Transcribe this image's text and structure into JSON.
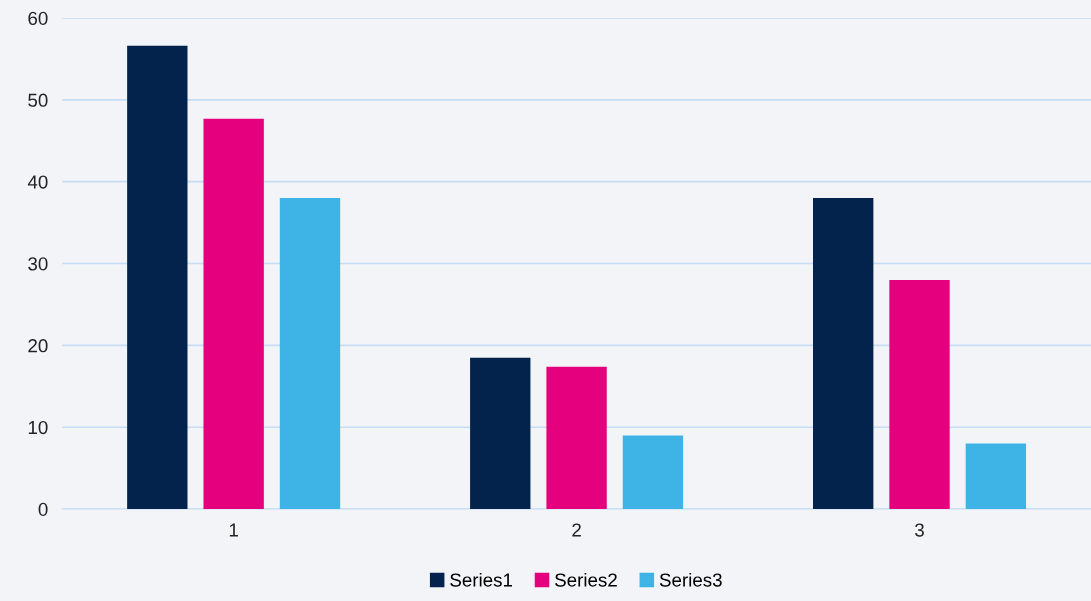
{
  "chart_data": {
    "type": "bar",
    "categories": [
      "1",
      "2",
      "3"
    ],
    "series": [
      {
        "name": "Series1",
        "color": "#03224c",
        "values": [
          56.6,
          18.5,
          38
        ]
      },
      {
        "name": "Series2",
        "color": "#e5007d",
        "values": [
          47.7,
          17.4,
          28
        ]
      },
      {
        "name": "Series3",
        "color": "#3eb4e6",
        "values": [
          38,
          9,
          8
        ]
      }
    ],
    "ylim": [
      0,
      60
    ],
    "yticks": [
      0,
      10,
      20,
      30,
      40,
      50,
      60
    ],
    "grid": "y",
    "legend": "bottom"
  }
}
